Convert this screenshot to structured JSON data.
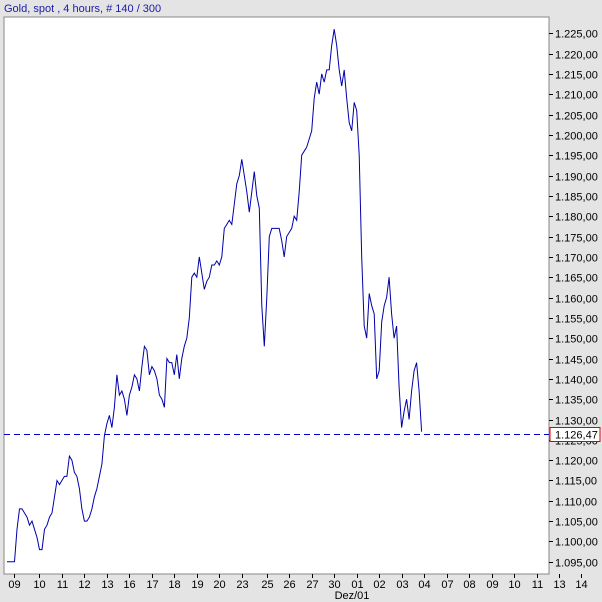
{
  "chart_data": {
    "type": "line",
    "title": "Gold, spot , 4 hours, # 140 / 300",
    "xlabel": "Dez/01",
    "ylabel": "",
    "grid": false,
    "line_color": "#0000aa",
    "ylim": [
      1092.0,
      1229.0
    ],
    "xlim": [
      0,
      217
    ],
    "y_ticks": [
      1095,
      1100,
      1105,
      1110,
      1115,
      1120,
      1125,
      1130,
      1135,
      1140,
      1145,
      1150,
      1155,
      1160,
      1165,
      1170,
      1175,
      1180,
      1185,
      1190,
      1195,
      1200,
      1205,
      1210,
      1215,
      1220,
      1225
    ],
    "y_tick_labels": [
      "1.095,00",
      "1.100,00",
      "1.105,00",
      "1.110,00",
      "1.115,00",
      "1.120,00",
      "1.125,00",
      "1.130,00",
      "1.135,00",
      "1.140,00",
      "1.145,00",
      "1.150,00",
      "1.155,00",
      "1.160,00",
      "1.165,00",
      "1.170,00",
      "1.175,00",
      "1.180,00",
      "1.185,00",
      "1.190,00",
      "1.195,00",
      "1.200,00",
      "1.205,00",
      "1.210,00",
      "1.215,00",
      "1.220,00",
      "1.225,00"
    ],
    "x_tick_labels": [
      {
        "label": "09",
        "pos": 3
      },
      {
        "label": "10",
        "pos": 13
      },
      {
        "label": "11",
        "pos": 22
      },
      {
        "label": "12",
        "pos": 31
      },
      {
        "label": "13",
        "pos": 40
      },
      {
        "label": "16",
        "pos": 49
      },
      {
        "label": "17",
        "pos": 58
      },
      {
        "label": "18",
        "pos": 67
      },
      {
        "label": "19",
        "pos": 76
      },
      {
        "label": "20",
        "pos": 85
      },
      {
        "label": "23",
        "pos": 94
      },
      {
        "label": "25",
        "pos": 104
      },
      {
        "label": "26",
        "pos": 113
      },
      {
        "label": "27",
        "pos": 122
      },
      {
        "label": "30",
        "pos": 131
      },
      {
        "label": "01",
        "pos": 140
      },
      {
        "label": "02",
        "pos": 149
      },
      {
        "label": "03",
        "pos": 158
      },
      {
        "label": "04",
        "pos": 167
      },
      {
        "label": "07",
        "pos": 176
      },
      {
        "label": "08",
        "pos": 185
      },
      {
        "label": "09",
        "pos": 194
      },
      {
        "label": "10",
        "pos": 203
      },
      {
        "label": "11",
        "pos": 212
      },
      {
        "label": "13",
        "pos": 221
      },
      {
        "label": "14",
        "pos": 230
      }
    ],
    "series": [
      {
        "values": [
          [
            0,
            1095
          ],
          [
            3,
            1095
          ],
          [
            4,
            1103
          ],
          [
            5,
            1108
          ],
          [
            6,
            1108
          ],
          [
            7,
            1107
          ],
          [
            8,
            1106
          ],
          [
            9,
            1104
          ],
          [
            10,
            1105
          ],
          [
            11,
            1103
          ],
          [
            12,
            1101
          ],
          [
            13,
            1098
          ],
          [
            14,
            1098
          ],
          [
            15,
            1103
          ],
          [
            16,
            1104
          ],
          [
            17,
            1106
          ],
          [
            18,
            1107
          ],
          [
            19,
            1111
          ],
          [
            20,
            1115
          ],
          [
            21,
            1114
          ],
          [
            22,
            1115
          ],
          [
            23,
            1116
          ],
          [
            24,
            1116
          ],
          [
            25,
            1121
          ],
          [
            26,
            1120
          ],
          [
            27,
            1117
          ],
          [
            28,
            1116
          ],
          [
            29,
            1113
          ],
          [
            30,
            1108
          ],
          [
            31,
            1105
          ],
          [
            32,
            1105
          ],
          [
            33,
            1106
          ],
          [
            34,
            1108
          ],
          [
            35,
            1111
          ],
          [
            36,
            1113
          ],
          [
            37,
            1116
          ],
          [
            38,
            1119
          ],
          [
            39,
            1126
          ],
          [
            40,
            1129
          ],
          [
            41,
            1131
          ],
          [
            42,
            1128
          ],
          [
            43,
            1133
          ],
          [
            44,
            1141
          ],
          [
            45,
            1136
          ],
          [
            46,
            1137
          ],
          [
            47,
            1135
          ],
          [
            48,
            1131
          ],
          [
            49,
            1136
          ],
          [
            50,
            1138
          ],
          [
            51,
            1141
          ],
          [
            52,
            1140
          ],
          [
            53,
            1137
          ],
          [
            54,
            1143
          ],
          [
            55,
            1148
          ],
          [
            56,
            1147
          ],
          [
            57,
            1141
          ],
          [
            58,
            1143
          ],
          [
            59,
            1142
          ],
          [
            60,
            1140
          ],
          [
            61,
            1136
          ],
          [
            62,
            1135
          ],
          [
            63,
            1133
          ],
          [
            64,
            1145
          ],
          [
            65,
            1144
          ],
          [
            66,
            1144
          ],
          [
            67,
            1141
          ],
          [
            68,
            1146
          ],
          [
            69,
            1140
          ],
          [
            70,
            1145
          ],
          [
            71,
            1148
          ],
          [
            72,
            1150
          ],
          [
            73,
            1155
          ],
          [
            74,
            1165
          ],
          [
            75,
            1166
          ],
          [
            76,
            1165
          ],
          [
            77,
            1170
          ],
          [
            78,
            1166
          ],
          [
            79,
            1162
          ],
          [
            80,
            1164
          ],
          [
            81,
            1165
          ],
          [
            82,
            1168
          ],
          [
            83,
            1168
          ],
          [
            84,
            1169
          ],
          [
            85,
            1168
          ],
          [
            86,
            1170
          ],
          [
            87,
            1177
          ],
          [
            88,
            1178
          ],
          [
            89,
            1179
          ],
          [
            90,
            1178
          ],
          [
            91,
            1183
          ],
          [
            92,
            1188
          ],
          [
            93,
            1190
          ],
          [
            94,
            1194
          ],
          [
            95,
            1190
          ],
          [
            96,
            1186
          ],
          [
            97,
            1181
          ],
          [
            98,
            1186
          ],
          [
            99,
            1191
          ],
          [
            100,
            1185
          ],
          [
            101,
            1182
          ],
          [
            102,
            1158
          ],
          [
            103,
            1148
          ],
          [
            104,
            1160
          ],
          [
            105,
            1175
          ],
          [
            106,
            1177
          ],
          [
            107,
            1177
          ],
          [
            108,
            1177
          ],
          [
            109,
            1177
          ],
          [
            110,
            1174
          ],
          [
            111,
            1170
          ],
          [
            112,
            1175
          ],
          [
            113,
            1176
          ],
          [
            114,
            1177
          ],
          [
            115,
            1180
          ],
          [
            116,
            1179
          ],
          [
            117,
            1186
          ],
          [
            118,
            1195
          ],
          [
            119,
            1196
          ],
          [
            120,
            1197
          ],
          [
            121,
            1199
          ],
          [
            122,
            1201
          ],
          [
            123,
            1209
          ],
          [
            124,
            1213
          ],
          [
            125,
            1210
          ],
          [
            126,
            1215
          ],
          [
            127,
            1213
          ],
          [
            128,
            1216
          ],
          [
            129,
            1216
          ],
          [
            130,
            1222
          ],
          [
            131,
            1226
          ],
          [
            132,
            1222
          ],
          [
            133,
            1216
          ],
          [
            134,
            1212
          ],
          [
            135,
            1216
          ],
          [
            136,
            1209
          ],
          [
            137,
            1203
          ],
          [
            138,
            1201
          ],
          [
            139,
            1208
          ],
          [
            140,
            1206
          ],
          [
            141,
            1195
          ],
          [
            142,
            1170
          ],
          [
            143,
            1153
          ],
          [
            144,
            1150
          ],
          [
            145,
            1161
          ],
          [
            146,
            1158
          ],
          [
            147,
            1156
          ],
          [
            148,
            1140
          ],
          [
            149,
            1142
          ],
          [
            150,
            1154
          ],
          [
            151,
            1158
          ],
          [
            152,
            1160
          ],
          [
            153,
            1165
          ],
          [
            154,
            1156
          ],
          [
            155,
            1150
          ],
          [
            156,
            1153
          ],
          [
            157,
            1138
          ],
          [
            158,
            1128
          ],
          [
            159,
            1132
          ],
          [
            160,
            1135
          ],
          [
            161,
            1130
          ],
          [
            162,
            1137
          ],
          [
            163,
            1142
          ],
          [
            164,
            1144
          ],
          [
            165,
            1137
          ],
          [
            166,
            1127
          ]
        ]
      }
    ],
    "reference_line": {
      "value": 1126.47,
      "label": "1.126,47",
      "color": "#0000cc",
      "style": "dashed"
    }
  }
}
